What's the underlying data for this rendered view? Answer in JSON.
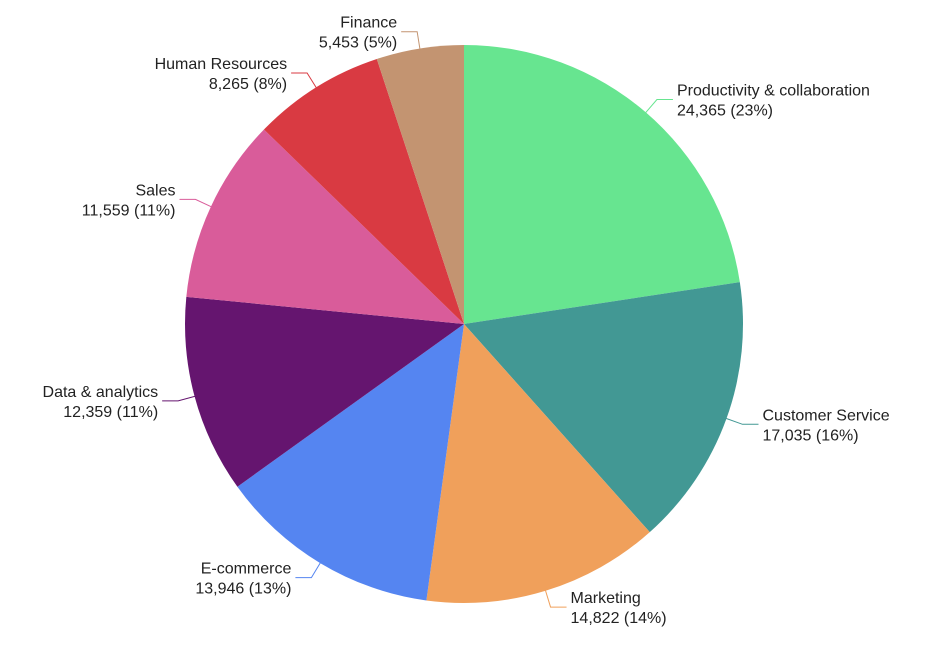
{
  "chart_data": {
    "type": "pie",
    "title": "",
    "start_angle_deg": 0,
    "direction": "clockwise",
    "slices": [
      {
        "label": "Productivity & collaboration",
        "value": 24365,
        "percent_text": "24,365 (23%)",
        "color": "#67E590"
      },
      {
        "label": "Customer Service",
        "value": 17035,
        "percent_text": "17,035 (16%)",
        "color": "#429894"
      },
      {
        "label": "Marketing",
        "value": 14822,
        "percent_text": "14,822 (14%)",
        "color": "#F0A05B"
      },
      {
        "label": "E-commerce",
        "value": 13946,
        "percent_text": "13,946 (13%)",
        "color": "#5585F1"
      },
      {
        "label": "Data & analytics",
        "value": 12359,
        "percent_text": "12,359 (11%)",
        "color": "#65156F"
      },
      {
        "label": "Sales",
        "value": 11559,
        "percent_text": "11,559 (11%)",
        "color": "#D95C9A"
      },
      {
        "label": "Human Resources",
        "value": 8265,
        "percent_text": "8,265 (8%)",
        "color": "#D93A42"
      },
      {
        "label": "Finance",
        "value": 5453,
        "percent_text": "5,453 (5%)",
        "color": "#C39471"
      }
    ]
  }
}
